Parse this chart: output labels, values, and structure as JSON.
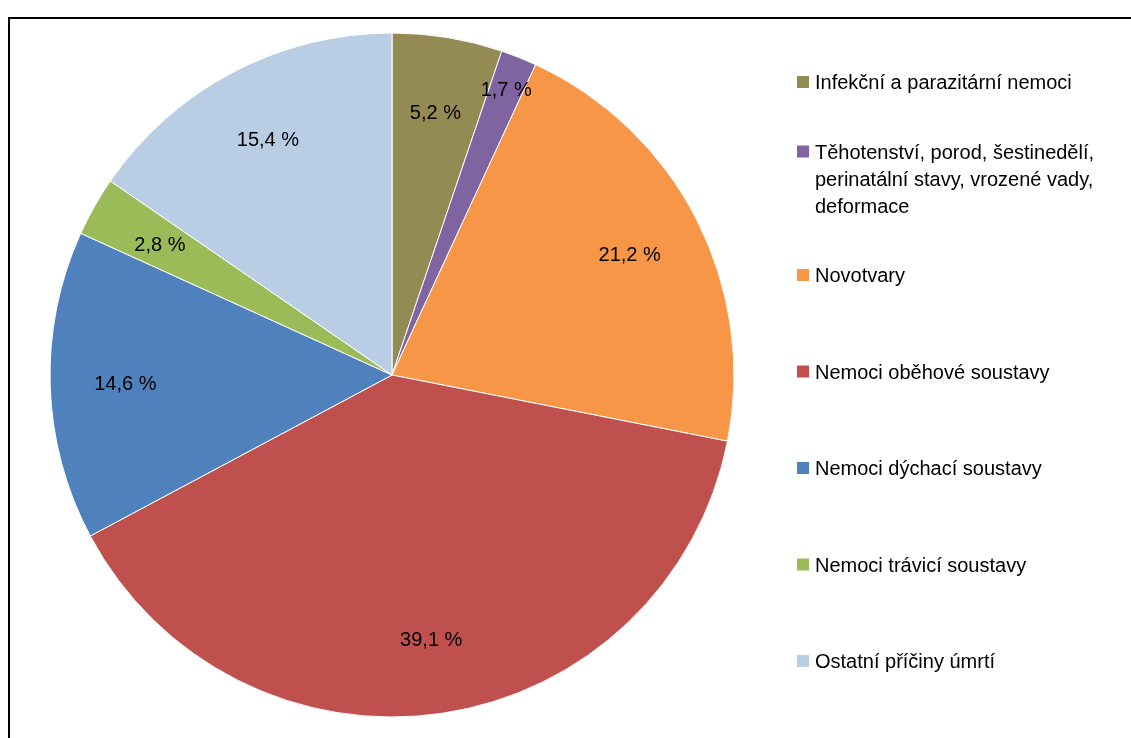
{
  "chart_data": {
    "type": "pie",
    "categories": [
      "Infekční a parazitární nemoci",
      "Těhotenství, porod, šestinedělí, perinatální stavy, vrozené vady, deformace",
      "Novotvary",
      "Nemoci oběhové soustavy",
      "Nemoci dýchací soustavy",
      "Nemoci trávicí soustavy",
      "Ostatní příčiny úmrtí"
    ],
    "values": [
      5.2,
      1.7,
      21.2,
      39.1,
      14.6,
      2.8,
      15.4
    ],
    "value_labels": [
      "5,2 %",
      "1,7 %",
      "21,2 %",
      "39,1 %",
      "14,6 %",
      "2,8 %",
      "15,4 %"
    ],
    "colors": [
      "#948a54",
      "#8064a2",
      "#f79646",
      "#c0504d",
      "#4f81bd",
      "#9bbb59",
      "#b9cde5"
    ],
    "legend": "right"
  }
}
